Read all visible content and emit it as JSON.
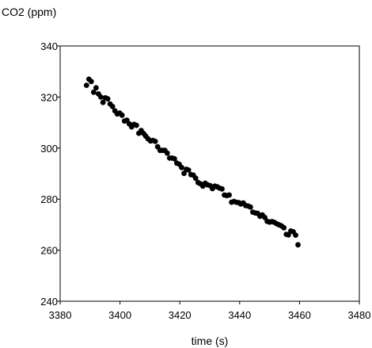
{
  "chart_data": {
    "type": "scatter",
    "title": "",
    "xlabel": "time (s)",
    "ylabel": "CO2 (ppm)",
    "xlim": [
      3380,
      3480
    ],
    "ylim": [
      240,
      340
    ],
    "xticks": [
      "3380",
      "3400",
      "3420",
      "3440",
      "3460",
      "3480"
    ],
    "yticks": [
      "240",
      "260",
      "280",
      "300",
      "320",
      "340"
    ],
    "grid": false,
    "legend": "none",
    "marker_color": "#000000",
    "series": [
      {
        "points": [
          [
            3388.8,
            324.6
          ],
          [
            3389.6,
            327.0
          ],
          [
            3390.4,
            326.1
          ],
          [
            3391.2,
            321.9
          ],
          [
            3392.0,
            323.6
          ],
          [
            3392.8,
            321.2
          ],
          [
            3393.6,
            320.0
          ],
          [
            3394.3,
            317.9
          ],
          [
            3395.1,
            319.7
          ],
          [
            3395.9,
            319.3
          ],
          [
            3396.7,
            317.3
          ],
          [
            3397.5,
            316.3
          ],
          [
            3398.3,
            314.6
          ],
          [
            3399.1,
            313.4
          ],
          [
            3399.9,
            313.7
          ],
          [
            3400.7,
            312.9
          ],
          [
            3401.5,
            310.6
          ],
          [
            3402.3,
            310.9
          ],
          [
            3403.1,
            309.5
          ],
          [
            3403.9,
            308.3
          ],
          [
            3404.7,
            309.3
          ],
          [
            3405.5,
            308.9
          ],
          [
            3406.3,
            305.8
          ],
          [
            3407.1,
            306.9
          ],
          [
            3407.9,
            305.7
          ],
          [
            3408.6,
            304.7
          ],
          [
            3409.4,
            303.6
          ],
          [
            3410.2,
            302.8
          ],
          [
            3411.0,
            303.0
          ],
          [
            3411.8,
            302.6
          ],
          [
            3412.6,
            300.5
          ],
          [
            3413.4,
            299.1
          ],
          [
            3414.2,
            299.1
          ],
          [
            3415.0,
            299.1
          ],
          [
            3415.8,
            298.0
          ],
          [
            3416.6,
            296.1
          ],
          [
            3417.4,
            296.1
          ],
          [
            3418.2,
            295.8
          ],
          [
            3419.0,
            294.1
          ],
          [
            3419.8,
            293.7
          ],
          [
            3420.6,
            292.4
          ],
          [
            3421.4,
            290.1
          ],
          [
            3422.2,
            291.7
          ],
          [
            3422.9,
            291.4
          ],
          [
            3423.7,
            289.6
          ],
          [
            3424.5,
            289.4
          ],
          [
            3425.3,
            288.2
          ],
          [
            3426.1,
            286.5
          ],
          [
            3426.9,
            286.0
          ],
          [
            3427.7,
            285.1
          ],
          [
            3428.5,
            286.2
          ],
          [
            3429.3,
            285.6
          ],
          [
            3430.1,
            285.3
          ],
          [
            3430.9,
            284.1
          ],
          [
            3431.7,
            285.1
          ],
          [
            3432.5,
            284.8
          ],
          [
            3433.3,
            284.3
          ],
          [
            3434.1,
            284.0
          ],
          [
            3434.9,
            281.6
          ],
          [
            3435.7,
            281.4
          ],
          [
            3436.5,
            281.6
          ],
          [
            3437.3,
            278.8
          ],
          [
            3438.1,
            279.1
          ],
          [
            3438.9,
            278.8
          ],
          [
            3439.7,
            278.6
          ],
          [
            3440.4,
            278.1
          ],
          [
            3441.2,
            278.5
          ],
          [
            3442.0,
            277.5
          ],
          [
            3442.8,
            277.3
          ],
          [
            3443.6,
            276.9
          ],
          [
            3444.4,
            274.9
          ],
          [
            3445.2,
            274.6
          ],
          [
            3446.0,
            274.4
          ],
          [
            3446.8,
            273.3
          ],
          [
            3447.6,
            273.8
          ],
          [
            3448.4,
            272.8
          ],
          [
            3449.2,
            271.3
          ],
          [
            3450.0,
            271.0
          ],
          [
            3450.8,
            271.2
          ],
          [
            3451.6,
            270.9
          ],
          [
            3452.4,
            270.3
          ],
          [
            3453.2,
            269.9
          ],
          [
            3454.0,
            269.5
          ],
          [
            3454.8,
            268.8
          ],
          [
            3455.6,
            266.2
          ],
          [
            3456.3,
            266.0
          ],
          [
            3457.1,
            267.5
          ],
          [
            3457.9,
            267.2
          ],
          [
            3458.7,
            265.9
          ],
          [
            3459.5,
            262.1
          ]
        ]
      }
    ]
  }
}
